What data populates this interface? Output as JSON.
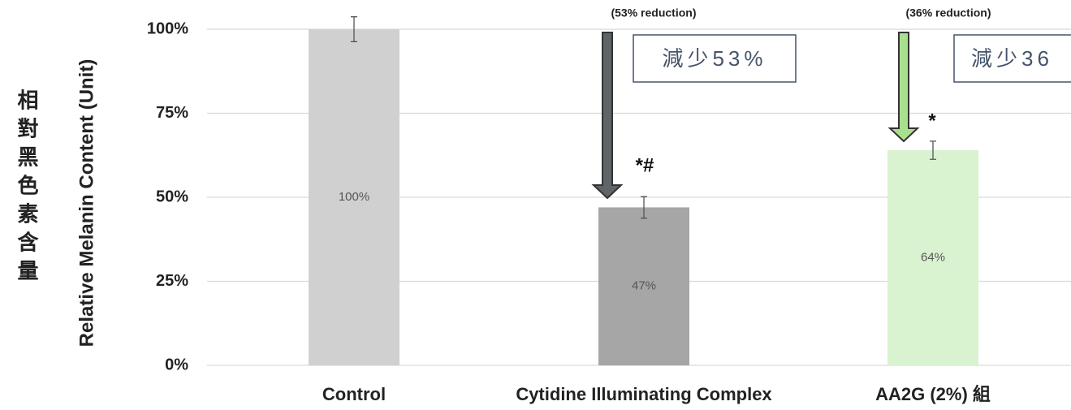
{
  "chart_data": {
    "type": "bar",
    "y_label": "Relative Melanin Content (Unit)",
    "y_label_cn": "相對黑色素含量",
    "categories": [
      "Control",
      "Cytidine Illuminating Complex",
      "AA2G (2%) 組"
    ],
    "values": [
      100,
      47,
      64
    ],
    "value_labels": [
      "100%",
      "47%",
      "64%"
    ],
    "errors": [
      3.7,
      3.2,
      2.7
    ],
    "colors": [
      "#d0d0d0",
      "#a6a6a6",
      "#d9f2d0"
    ],
    "ylim": [
      0,
      100
    ],
    "yticks": [
      {
        "value": 0,
        "label": "0%"
      },
      {
        "value": 25,
        "label": "25%"
      },
      {
        "value": 50,
        "label": "50%"
      },
      {
        "value": 75,
        "label": "75%"
      },
      {
        "value": 100,
        "label": "100%"
      }
    ],
    "grid": true,
    "annotations": [
      "(53% reduction)",
      "(36% reduction)",
      "減少53%",
      "減少36",
      "*#",
      "*"
    ]
  }
}
